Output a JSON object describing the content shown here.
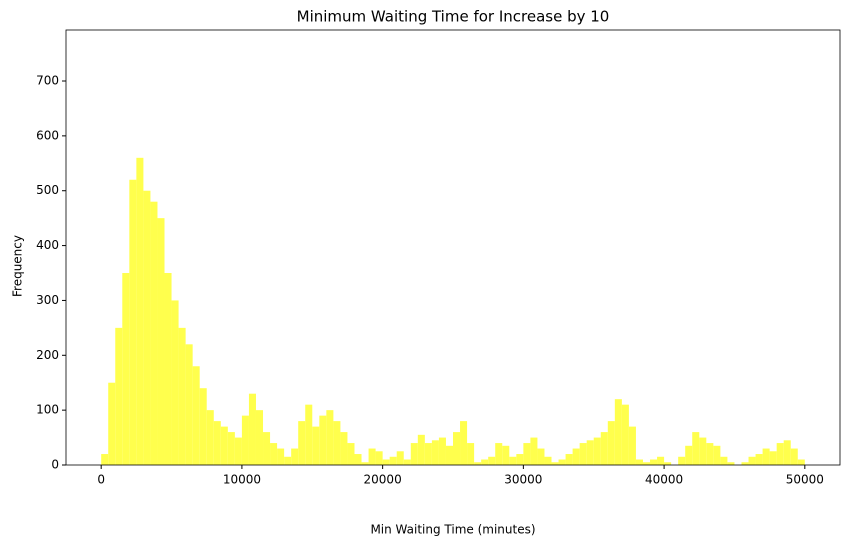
{
  "chart_data": {
    "type": "histogram",
    "title": "Minimum Waiting Time for Increase by 10",
    "x_label": "Min Waiting Time (minutes)",
    "y_label": "Frequency",
    "color": "#ffff4d",
    "bins": [
      0,
      500,
      1000,
      1500,
      2000,
      2500,
      3000,
      3500,
      4000,
      4500,
      5000,
      5500,
      6000,
      6500,
      7000,
      7500,
      8000,
      8500,
      9000,
      9500,
      10000,
      10500,
      11000,
      11500,
      12000,
      12500,
      13000,
      13500,
      14000,
      14500,
      15000,
      15500,
      16000,
      16500,
      17000,
      17500,
      18000,
      18500,
      19000,
      19500,
      20000,
      20500,
      21000,
      21500,
      22000,
      22500,
      23000,
      23500,
      24000,
      24500,
      25000,
      25500,
      26000,
      26500,
      27000,
      27500,
      28000,
      28500,
      29000,
      29500,
      30000,
      30500,
      31000,
      31500,
      32000,
      32500,
      33000,
      33500,
      34000,
      34500,
      35000,
      35500,
      36000,
      36500,
      37000,
      37500,
      38000,
      38500,
      39000,
      39500,
      40000,
      40500,
      41000,
      41500,
      42000,
      42500,
      43000,
      43500,
      44000,
      44500,
      45000,
      45500,
      46000,
      46500,
      47000,
      47500,
      48000,
      48500,
      49000,
      49500,
      50000
    ],
    "values": [
      20,
      150,
      250,
      350,
      520,
      560,
      500,
      480,
      450,
      350,
      300,
      250,
      220,
      180,
      140,
      100,
      80,
      70,
      60,
      50,
      90,
      130,
      100,
      60,
      40,
      30,
      15,
      30,
      80,
      110,
      70,
      90,
      100,
      80,
      60,
      40,
      20,
      5,
      30,
      25,
      10,
      15,
      25,
      10,
      40,
      55,
      40,
      45,
      50,
      35,
      60,
      80,
      40,
      5,
      10,
      15,
      40,
      35,
      15,
      20,
      40,
      50,
      30,
      15,
      5,
      10,
      20,
      30,
      40,
      45,
      50,
      60,
      80,
      120,
      110,
      70,
      10,
      5,
      10,
      15,
      5,
      0,
      15,
      35,
      60,
      50,
      40,
      35,
      15,
      5,
      0,
      5,
      15,
      20,
      30,
      25,
      40,
      45,
      30,
      10
    ],
    "xlim": [
      -2500,
      52500
    ],
    "ylim": [
      0,
      793
    ],
    "xticks": [
      0,
      10000,
      20000,
      30000,
      40000,
      50000
    ],
    "yticks": [
      0,
      100,
      200,
      300,
      400,
      500,
      600,
      700
    ]
  }
}
